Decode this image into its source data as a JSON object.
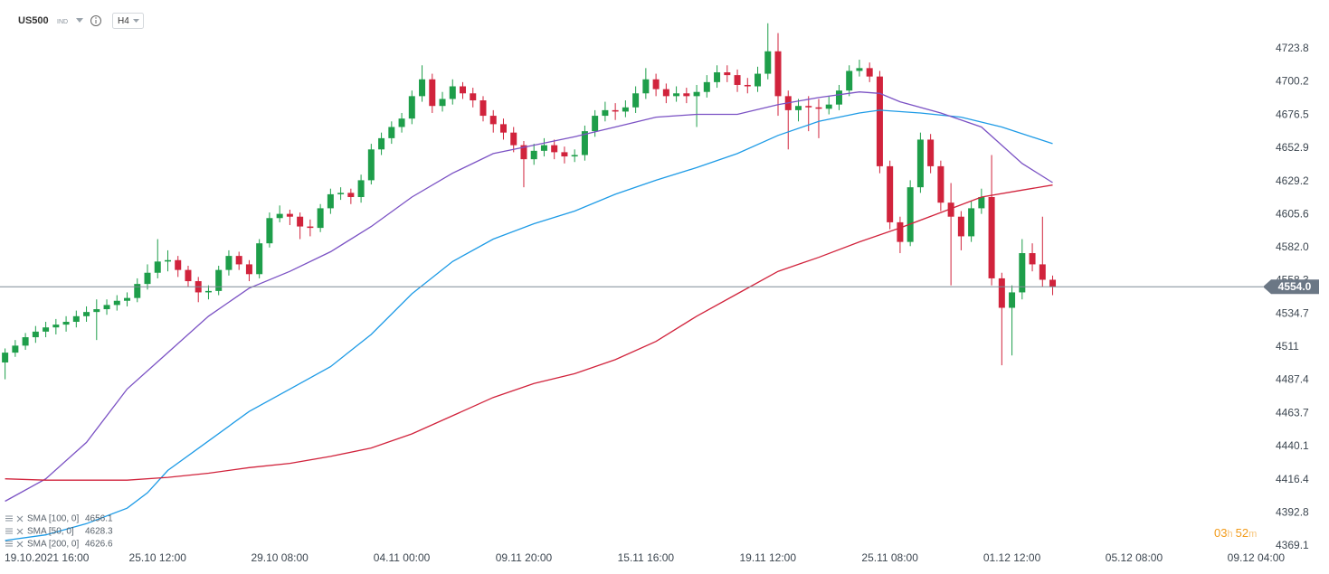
{
  "header": {
    "symbol": "US500",
    "market": "IND",
    "interval": "H4"
  },
  "countdown": [
    "03",
    "h",
    "52",
    "m"
  ],
  "chart_data": {
    "type": "candlestick",
    "up_color": "#1e9e4a",
    "down_color": "#d1233c",
    "xlim": [
      -0.5,
      123.5
    ],
    "xticks": [
      {
        "value": 3,
        "label": "19.10.2021 16:00"
      },
      {
        "value": 15,
        "label": "25.10 12:00"
      },
      {
        "value": 27,
        "label": "29.10 08:00"
      },
      {
        "value": 39,
        "label": "04.11 00:00"
      },
      {
        "value": 51,
        "label": "09.11 20:00"
      },
      {
        "value": 63,
        "label": "15.11 16:00"
      },
      {
        "value": 75,
        "label": "19.11 12:00"
      },
      {
        "value": 87,
        "label": "25.11 08:00"
      },
      {
        "value": 99,
        "label": "01.12 12:00"
      },
      {
        "value": 111,
        "label": "05.12 08:00"
      },
      {
        "value": 123,
        "label": "09.12 04:00"
      }
    ],
    "ylim": [
      4363.9,
      4758.6
    ],
    "yticks": [
      4723.8,
      4700.2,
      4676.5,
      4652.9,
      4629.2,
      4605.6,
      {
        "value": 4582,
        "label": "4582.0"
      },
      4558.3,
      4534.7,
      4511,
      4487.4,
      4463.7,
      4440.1,
      4416.4,
      4392.8,
      4369.1
    ],
    "open": [
      4500,
      4507,
      4512,
      4518,
      4522,
      4525,
      4527,
      4529,
      4533,
      4536,
      4538,
      4541,
      4544,
      4546,
      4556,
      4564,
      4572,
      4573,
      4566,
      4558,
      4550,
      4551,
      4566,
      4576,
      4570,
      4563,
      4585,
      4603,
      4606,
      4604,
      4597,
      4596,
      4610,
      4620,
      4621,
      4618,
      4630,
      4652,
      4660,
      4668,
      4674,
      4690,
      4702,
      4683,
      4688,
      4697,
      4692,
      4687,
      4676,
      4670,
      4664,
      4655,
      4645,
      4651,
      4655,
      4650,
      4647,
      4648,
      4665,
      4676,
      4680,
      4679,
      4682,
      4692,
      4702,
      4695,
      4690,
      4692,
      4690,
      4693,
      4700,
      4707,
      4705,
      4698,
      4697,
      4706,
      4722,
      4690,
      4680,
      4683,
      4682,
      4681,
      4684,
      4694,
      4708,
      4710,
      4704,
      4640,
      4600,
      4586,
      4625,
      4659,
      4640,
      4614,
      4604,
      4590,
      4610,
      4618,
      4560,
      4539,
      4550,
      4578,
      4570,
      4559
    ],
    "high": [
      4510,
      4516,
      4521,
      4526,
      4529,
      4531,
      4533,
      4537,
      4540,
      4545,
      4545,
      4548,
      4550,
      4560,
      4570,
      4588,
      4580,
      4576,
      4569,
      4561,
      4555,
      4569,
      4580,
      4579,
      4573,
      4588,
      4607,
      4612,
      4609,
      4607,
      4602,
      4613,
      4624,
      4625,
      4624,
      4634,
      4656,
      4664,
      4672,
      4678,
      4694,
      4712,
      4706,
      4693,
      4702,
      4700,
      4696,
      4690,
      4680,
      4674,
      4668,
      4658,
      4656,
      4660,
      4659,
      4654,
      4652,
      4669,
      4680,
      4686,
      4685,
      4687,
      4697,
      4710,
      4706,
      4699,
      4697,
      4696,
      4698,
      4705,
      4712,
      4712,
      4709,
      4703,
      4711,
      4742,
      4735,
      4694,
      4688,
      4690,
      4688,
      4690,
      4698,
      4712,
      4716,
      4714,
      4708,
      4644,
      4604,
      4630,
      4664,
      4663,
      4644,
      4628,
      4608,
      4615,
      4624,
      4648,
      4564,
      4555,
      4588,
      4585,
      4604,
      4562
    ],
    "low": [
      4488,
      4504,
      4509,
      4514,
      4518,
      4520,
      4522,
      4525,
      4529,
      4516,
      4534,
      4537,
      4540,
      4543,
      4552,
      4560,
      4565,
      4561,
      4554,
      4543,
      4545,
      4548,
      4562,
      4566,
      4558,
      4560,
      4582,
      4600,
      4598,
      4588,
      4590,
      4593,
      4606,
      4616,
      4613,
      4614,
      4627,
      4648,
      4656,
      4664,
      4670,
      4686,
      4678,
      4679,
      4684,
      4688,
      4682,
      4672,
      4664,
      4659,
      4650,
      4625,
      4641,
      4647,
      4645,
      4642,
      4643,
      4644,
      4661,
      4672,
      4673,
      4675,
      4678,
      4688,
      4690,
      4685,
      4686,
      4685,
      4668,
      4689,
      4696,
      4700,
      4693,
      4692,
      4693,
      4702,
      4676,
      4652,
      4672,
      4665,
      4660,
      4677,
      4680,
      4690,
      4704,
      4700,
      4635,
      4595,
      4578,
      4583,
      4621,
      4635,
      4608,
      4555,
      4580,
      4586,
      4606,
      4555,
      4498,
      4505,
      4545,
      4565,
      4554,
      4548
    ],
    "close": [
      4507,
      4512,
      4518,
      4522,
      4525,
      4527,
      4529,
      4533,
      4536,
      4538,
      4541,
      4544,
      4546,
      4556,
      4564,
      4572,
      4573,
      4566,
      4558,
      4550,
      4551,
      4566,
      4576,
      4570,
      4563,
      4585,
      4603,
      4606,
      4604,
      4597,
      4596,
      4610,
      4620,
      4621,
      4618,
      4630,
      4652,
      4660,
      4668,
      4674,
      4690,
      4702,
      4683,
      4688,
      4697,
      4692,
      4687,
      4676,
      4670,
      4664,
      4655,
      4645,
      4651,
      4655,
      4650,
      4647,
      4648,
      4665,
      4676,
      4680,
      4679,
      4682,
      4692,
      4702,
      4695,
      4690,
      4692,
      4690,
      4693,
      4700,
      4707,
      4705,
      4698,
      4697,
      4706,
      4722,
      4690,
      4680,
      4683,
      4682,
      4681,
      4684,
      4694,
      4708,
      4710,
      4704,
      4640,
      4600,
      4586,
      4625,
      4659,
      4640,
      4614,
      4604,
      4590,
      4610,
      4618,
      4560,
      4539,
      4550,
      4578,
      4570,
      4559,
      4554
    ],
    "series": [
      {
        "name": "SMA [100, 0]",
        "color": "#1e9be6",
        "x": [
          0,
          4,
          8,
          12,
          14,
          16,
          20,
          24,
          28,
          32,
          36,
          40,
          44,
          48,
          52,
          56,
          60,
          64,
          68,
          72,
          76,
          80,
          84,
          86,
          90,
          94,
          98,
          103
        ],
        "values": [
          4373,
          4377,
          4385,
          4396,
          4407,
          4423,
          4444,
          4465,
          4481,
          4497,
          4520,
          4549,
          4572,
          4588,
          4599,
          4608,
          4620,
          4630,
          4639,
          4649,
          4662,
          4672,
          4678,
          4680,
          4678,
          4675,
          4668,
          4656.1
        ]
      },
      {
        "name": "SMA [50, 0]",
        "color": "#7b52c4",
        "x": [
          0,
          4,
          8,
          12,
          16,
          20,
          24,
          28,
          32,
          36,
          40,
          44,
          48,
          52,
          56,
          60,
          64,
          68,
          72,
          76,
          80,
          84,
          86,
          88,
          92,
          96,
          100,
          103
        ],
        "values": [
          4401,
          4417,
          4443,
          4481,
          4507,
          4533,
          4553,
          4565,
          4579,
          4597,
          4618,
          4635,
          4649,
          4655,
          4661,
          4668,
          4675,
          4677,
          4677,
          4684,
          4689,
          4693,
          4692,
          4686,
          4678,
          4668,
          4642,
          4628.3
        ]
      },
      {
        "name": "SMA [200, 0]",
        "color": "#d1233c",
        "x": [
          0,
          4,
          8,
          12,
          16,
          20,
          24,
          28,
          32,
          36,
          40,
          44,
          48,
          52,
          56,
          60,
          64,
          68,
          72,
          76,
          80,
          84,
          88,
          92,
          96,
          100,
          103
        ],
        "values": [
          4417,
          4416,
          4416,
          4416,
          4418,
          4421,
          4425,
          4428,
          4433,
          4439,
          4449,
          4462,
          4475,
          4485,
          4492,
          4502,
          4515,
          4533,
          4549,
          4565,
          4575,
          4586,
          4596,
          4607,
          4618,
          4623,
          4626.6
        ]
      }
    ],
    "current_price": {
      "value": 4554,
      "label": "4554.0"
    }
  }
}
